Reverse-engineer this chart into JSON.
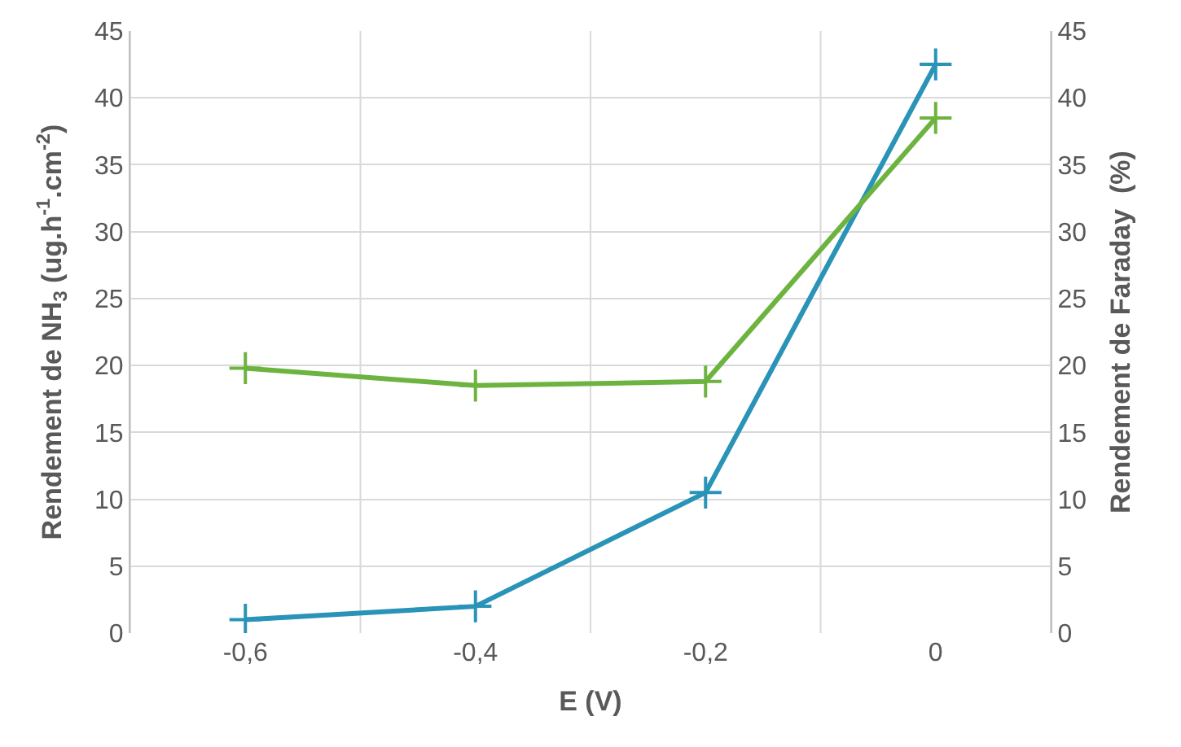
{
  "chart_data": {
    "type": "line",
    "xlabel": "E (V)",
    "ylabel": "Rendement de NH$_{3}$ (ug.h$^{-1}$.cm$^{-2}$)",
    "y2label": "Rendement de Faraday  (%)",
    "x": [
      -0.6,
      -0.4,
      -0.2,
      0
    ],
    "series": [
      {
        "color": "#2a93b8",
        "values": [
          1,
          2,
          10.5,
          42.5
        ]
      },
      {
        "color": "#6db33f",
        "values": [
          19.8,
          18.5,
          18.8,
          38.5
        ],
        "axis": "y2"
      }
    ],
    "xlim": [
      -0.7,
      0.1
    ],
    "xticks": [
      {
        "value": -0.7,
        "label": null
      },
      {
        "value": -0.6,
        "label": "-0,6"
      },
      {
        "value": -0.5,
        "label": null
      },
      {
        "value": -0.4,
        "label": "-0,4"
      },
      {
        "value": -0.3,
        "label": null
      },
      {
        "value": -0.2,
        "label": "-0,2"
      },
      {
        "value": -0.1,
        "label": null
      },
      {
        "value": 0,
        "label": "0"
      },
      {
        "value": 0.1,
        "label": null
      }
    ],
    "ylim": [
      0,
      45
    ],
    "yticks": [
      0,
      5,
      10,
      15,
      20,
      25,
      30,
      35,
      40,
      45
    ],
    "y2lim": [
      0,
      45
    ],
    "y2ticks": [
      0,
      5,
      10,
      15,
      20,
      25,
      30,
      35,
      40,
      45
    ],
    "grid": true,
    "marker": "cross",
    "line_style": "solid"
  }
}
